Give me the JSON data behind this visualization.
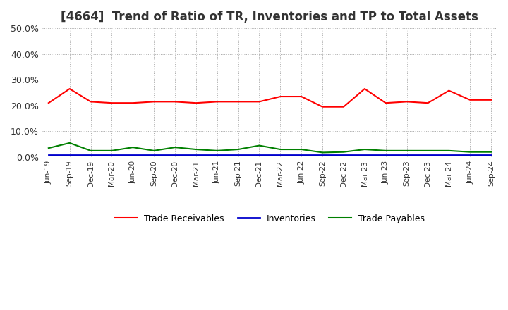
{
  "title": "[4664]  Trend of Ratio of TR, Inventories and TP to Total Assets",
  "title_fontsize": 12,
  "x_labels": [
    "Jun-19",
    "Sep-19",
    "Dec-19",
    "Mar-20",
    "Jun-20",
    "Sep-20",
    "Dec-20",
    "Mar-21",
    "Jun-21",
    "Sep-21",
    "Dec-21",
    "Mar-22",
    "Jun-22",
    "Sep-22",
    "Dec-22",
    "Mar-23",
    "Jun-23",
    "Sep-23",
    "Dec-23",
    "Mar-24",
    "Jun-24",
    "Sep-24"
  ],
  "trade_receivables": [
    0.21,
    0.265,
    0.215,
    0.21,
    0.21,
    0.215,
    0.215,
    0.21,
    0.215,
    0.215,
    0.215,
    0.235,
    0.235,
    0.195,
    0.195,
    0.265,
    0.21,
    0.215,
    0.21,
    0.258,
    0.222,
    0.222
  ],
  "inventories": [
    0.008,
    0.008,
    0.008,
    0.008,
    0.008,
    0.008,
    0.008,
    0.008,
    0.008,
    0.008,
    0.008,
    0.008,
    0.008,
    0.008,
    0.008,
    0.008,
    0.008,
    0.008,
    0.008,
    0.008,
    0.008,
    0.008
  ],
  "trade_payables": [
    0.035,
    0.055,
    0.025,
    0.025,
    0.038,
    0.025,
    0.038,
    0.03,
    0.025,
    0.03,
    0.045,
    0.03,
    0.03,
    0.018,
    0.02,
    0.03,
    0.025,
    0.025,
    0.025,
    0.025,
    0.02,
    0.02
  ],
  "tr_color": "#ff0000",
  "inv_color": "#0000cc",
  "tp_color": "#008000",
  "ylim_min": 0.0,
  "ylim_max": 0.5,
  "yticks": [
    0.0,
    0.1,
    0.2,
    0.3,
    0.4,
    0.5
  ],
  "ytick_labels": [
    "0.0%",
    "10.0%",
    "20.0%",
    "30.0%",
    "40.0%",
    "50.0%"
  ],
  "bg_color": "#ffffff",
  "grid_color": "#aaaaaa",
  "legend_labels": [
    "Trade Receivables",
    "Inventories",
    "Trade Payables"
  ]
}
